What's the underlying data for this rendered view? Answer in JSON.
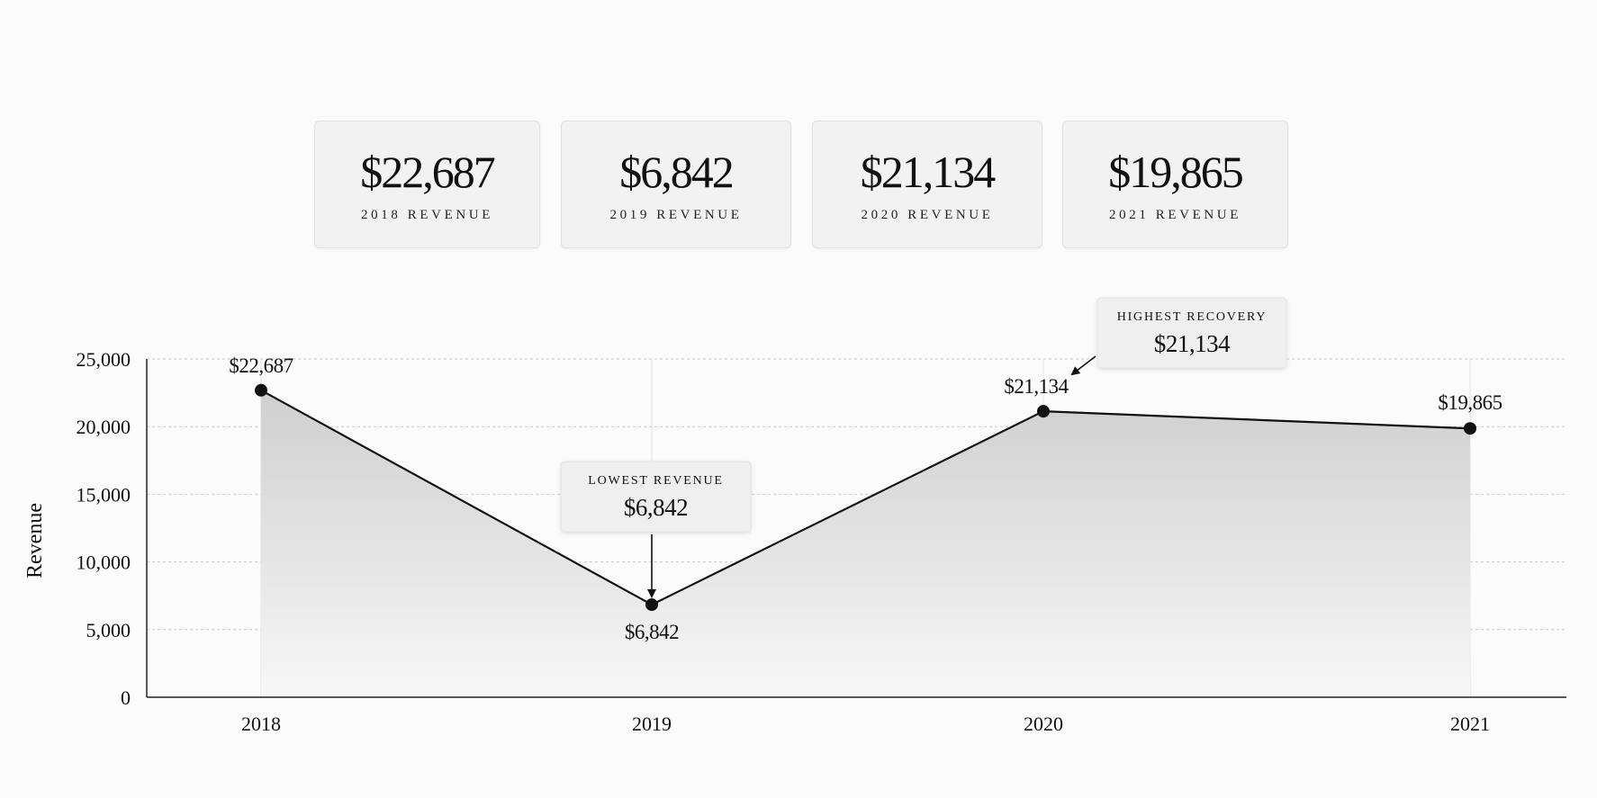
{
  "kpis": [
    {
      "value": "$22,687",
      "label": "2018 REVENUE"
    },
    {
      "value": "$6,842",
      "label": "2019 REVENUE"
    },
    {
      "value": "$21,134",
      "label": "2020 REVENUE"
    },
    {
      "value": "$19,865",
      "label": "2021 REVENUE"
    }
  ],
  "chart_data": {
    "type": "area",
    "categories": [
      "2018",
      "2019",
      "2020",
      "2021"
    ],
    "values": [
      22687,
      6842,
      21134,
      19865
    ],
    "data_labels": [
      "$22,687",
      "$6,842",
      "$21,134",
      "$19,865"
    ],
    "ylabel": "Revenue",
    "ylim": [
      0,
      25000
    ],
    "yticks": [
      0,
      5000,
      10000,
      15000,
      20000,
      25000
    ],
    "ytick_labels": [
      "0",
      "5,000",
      "10,000",
      "15,000",
      "20,000",
      "25,000"
    ],
    "grid": true,
    "annotations": [
      {
        "title": "LOWEST REVENUE",
        "value": "$6,842",
        "category": "2019"
      },
      {
        "title": "HIGHEST RECOVERY",
        "value": "$21,134",
        "category": "2020"
      }
    ]
  },
  "colors": {
    "line": "#111111",
    "marker": "#111111",
    "fill_top": "#cfcfcf",
    "fill_bottom": "#f7f7f7",
    "grid": "#c9c9c9",
    "card_bg": "#f2f2f2",
    "background": "#fbfbfa"
  }
}
